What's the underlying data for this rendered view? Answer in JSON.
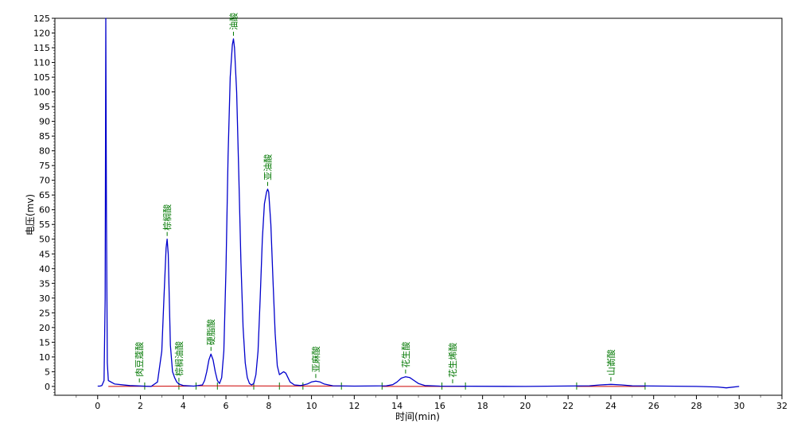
{
  "chart_data": {
    "type": "line",
    "xlabel": "时间(min)",
    "ylabel": "电压(mv)",
    "xlim": [
      -2,
      32
    ],
    "ylim": [
      -3,
      125
    ],
    "x_ticks": [
      0,
      2,
      4,
      6,
      8,
      10,
      12,
      14,
      16,
      18,
      20,
      22,
      24,
      26,
      28,
      30,
      32
    ],
    "y_ticks": [
      0,
      5,
      10,
      15,
      20,
      25,
      30,
      35,
      40,
      45,
      50,
      55,
      60,
      65,
      70,
      75,
      80,
      85,
      90,
      95,
      100,
      105,
      110,
      115,
      120,
      125
    ],
    "grid": false,
    "colors": {
      "signal": "#0000cc",
      "baseline": "#cc0000",
      "peak_label": "#007700",
      "marker": "#007700"
    },
    "signal": {
      "x": [
        0.0,
        0.1,
        0.2,
        0.3,
        0.35,
        0.38,
        0.41,
        0.45,
        0.5,
        0.8,
        1.5,
        2.5,
        2.8,
        3.0,
        3.1,
        3.2,
        3.25,
        3.3,
        3.35,
        3.4,
        3.5,
        3.6,
        3.7,
        3.8,
        4.0,
        4.5,
        4.9,
        5.0,
        5.1,
        5.2,
        5.3,
        5.4,
        5.5,
        5.6,
        5.7,
        5.8,
        5.9,
        6.0,
        6.1,
        6.2,
        6.3,
        6.35,
        6.4,
        6.5,
        6.6,
        6.7,
        6.8,
        6.9,
        7.0,
        7.1,
        7.2,
        7.3,
        7.4,
        7.5,
        7.6,
        7.7,
        7.8,
        7.9,
        7.95,
        8.0,
        8.1,
        8.2,
        8.3,
        8.4,
        8.5,
        8.6,
        8.7,
        8.8,
        8.9,
        9.0,
        9.2,
        9.5,
        9.8,
        10.0,
        10.2,
        10.4,
        10.6,
        11.0,
        12.0,
        13.5,
        13.8,
        14.0,
        14.2,
        14.4,
        14.6,
        14.8,
        15.0,
        15.3,
        16.0,
        20.0,
        23.0,
        23.5,
        24.0,
        24.5,
        25.0,
        28.0,
        29.0,
        29.4,
        30.0
      ],
      "y": [
        0.1,
        0.1,
        0.3,
        2.0,
        30.0,
        125.0,
        60.0,
        8.0,
        2.0,
        0.8,
        0.3,
        0.0,
        1.5,
        12.0,
        30.0,
        47.0,
        50.0,
        45.0,
        30.0,
        14.0,
        5.0,
        3.0,
        1.5,
        0.8,
        0.3,
        0.1,
        0.5,
        2.0,
        5.0,
        9.0,
        11.0,
        9.0,
        5.0,
        2.0,
        1.0,
        3.0,
        12.0,
        40.0,
        78.0,
        105.0,
        116.0,
        118.0,
        115.0,
        100.0,
        72.0,
        42.0,
        20.0,
        8.0,
        3.0,
        1.0,
        0.5,
        1.0,
        4.0,
        12.0,
        30.0,
        50.0,
        62.0,
        66.0,
        67.0,
        66.0,
        55.0,
        36.0,
        18.0,
        7.0,
        4.0,
        4.5,
        5.0,
        4.5,
        3.0,
        1.5,
        0.5,
        0.3,
        0.8,
        1.5,
        1.8,
        1.5,
        0.8,
        0.2,
        0.1,
        0.2,
        0.6,
        1.5,
        2.8,
        3.3,
        3.0,
        2.0,
        1.0,
        0.3,
        0.1,
        0.0,
        0.2,
        0.5,
        0.7,
        0.5,
        0.2,
        0.0,
        -0.2,
        -0.5,
        0.0
      ]
    },
    "baseline_segments": [
      [
        [
          0.5,
          0.0
        ],
        [
          4.5,
          0.1
        ]
      ],
      [
        [
          4.6,
          0.2
        ],
        [
          12.5,
          0.1
        ]
      ],
      [
        [
          13.3,
          0.0
        ],
        [
          17.2,
          0.0
        ]
      ],
      [
        [
          22.4,
          0.0
        ],
        [
          25.6,
          0.0
        ]
      ]
    ],
    "markers": [
      2.2,
      3.8,
      4.6,
      5.6,
      7.3,
      8.5,
      9.6,
      11.4,
      13.3,
      16.1,
      17.2,
      22.4,
      25.6
    ],
    "peaks": [
      {
        "name": "肉豆蔻酸",
        "x": 1.95,
        "y": 0.3
      },
      {
        "name": "棕榈酸",
        "x": 3.25,
        "y": 50.0
      },
      {
        "name": "棕榈油酸",
        "x": 3.8,
        "y": 0.5
      },
      {
        "name": "硬脂酸",
        "x": 5.3,
        "y": 11.0
      },
      {
        "name": "油酸",
        "x": 6.35,
        "y": 118.0
      },
      {
        "name": "亚油酸",
        "x": 7.95,
        "y": 67.0
      },
      {
        "name": "亚麻酸",
        "x": 10.2,
        "y": 1.8
      },
      {
        "name": "花生酸",
        "x": 14.4,
        "y": 3.3
      },
      {
        "name": "花生烯酸",
        "x": 16.6,
        "y": 0.0
      },
      {
        "name": "山嵛酸",
        "x": 24.0,
        "y": 0.7
      }
    ]
  }
}
